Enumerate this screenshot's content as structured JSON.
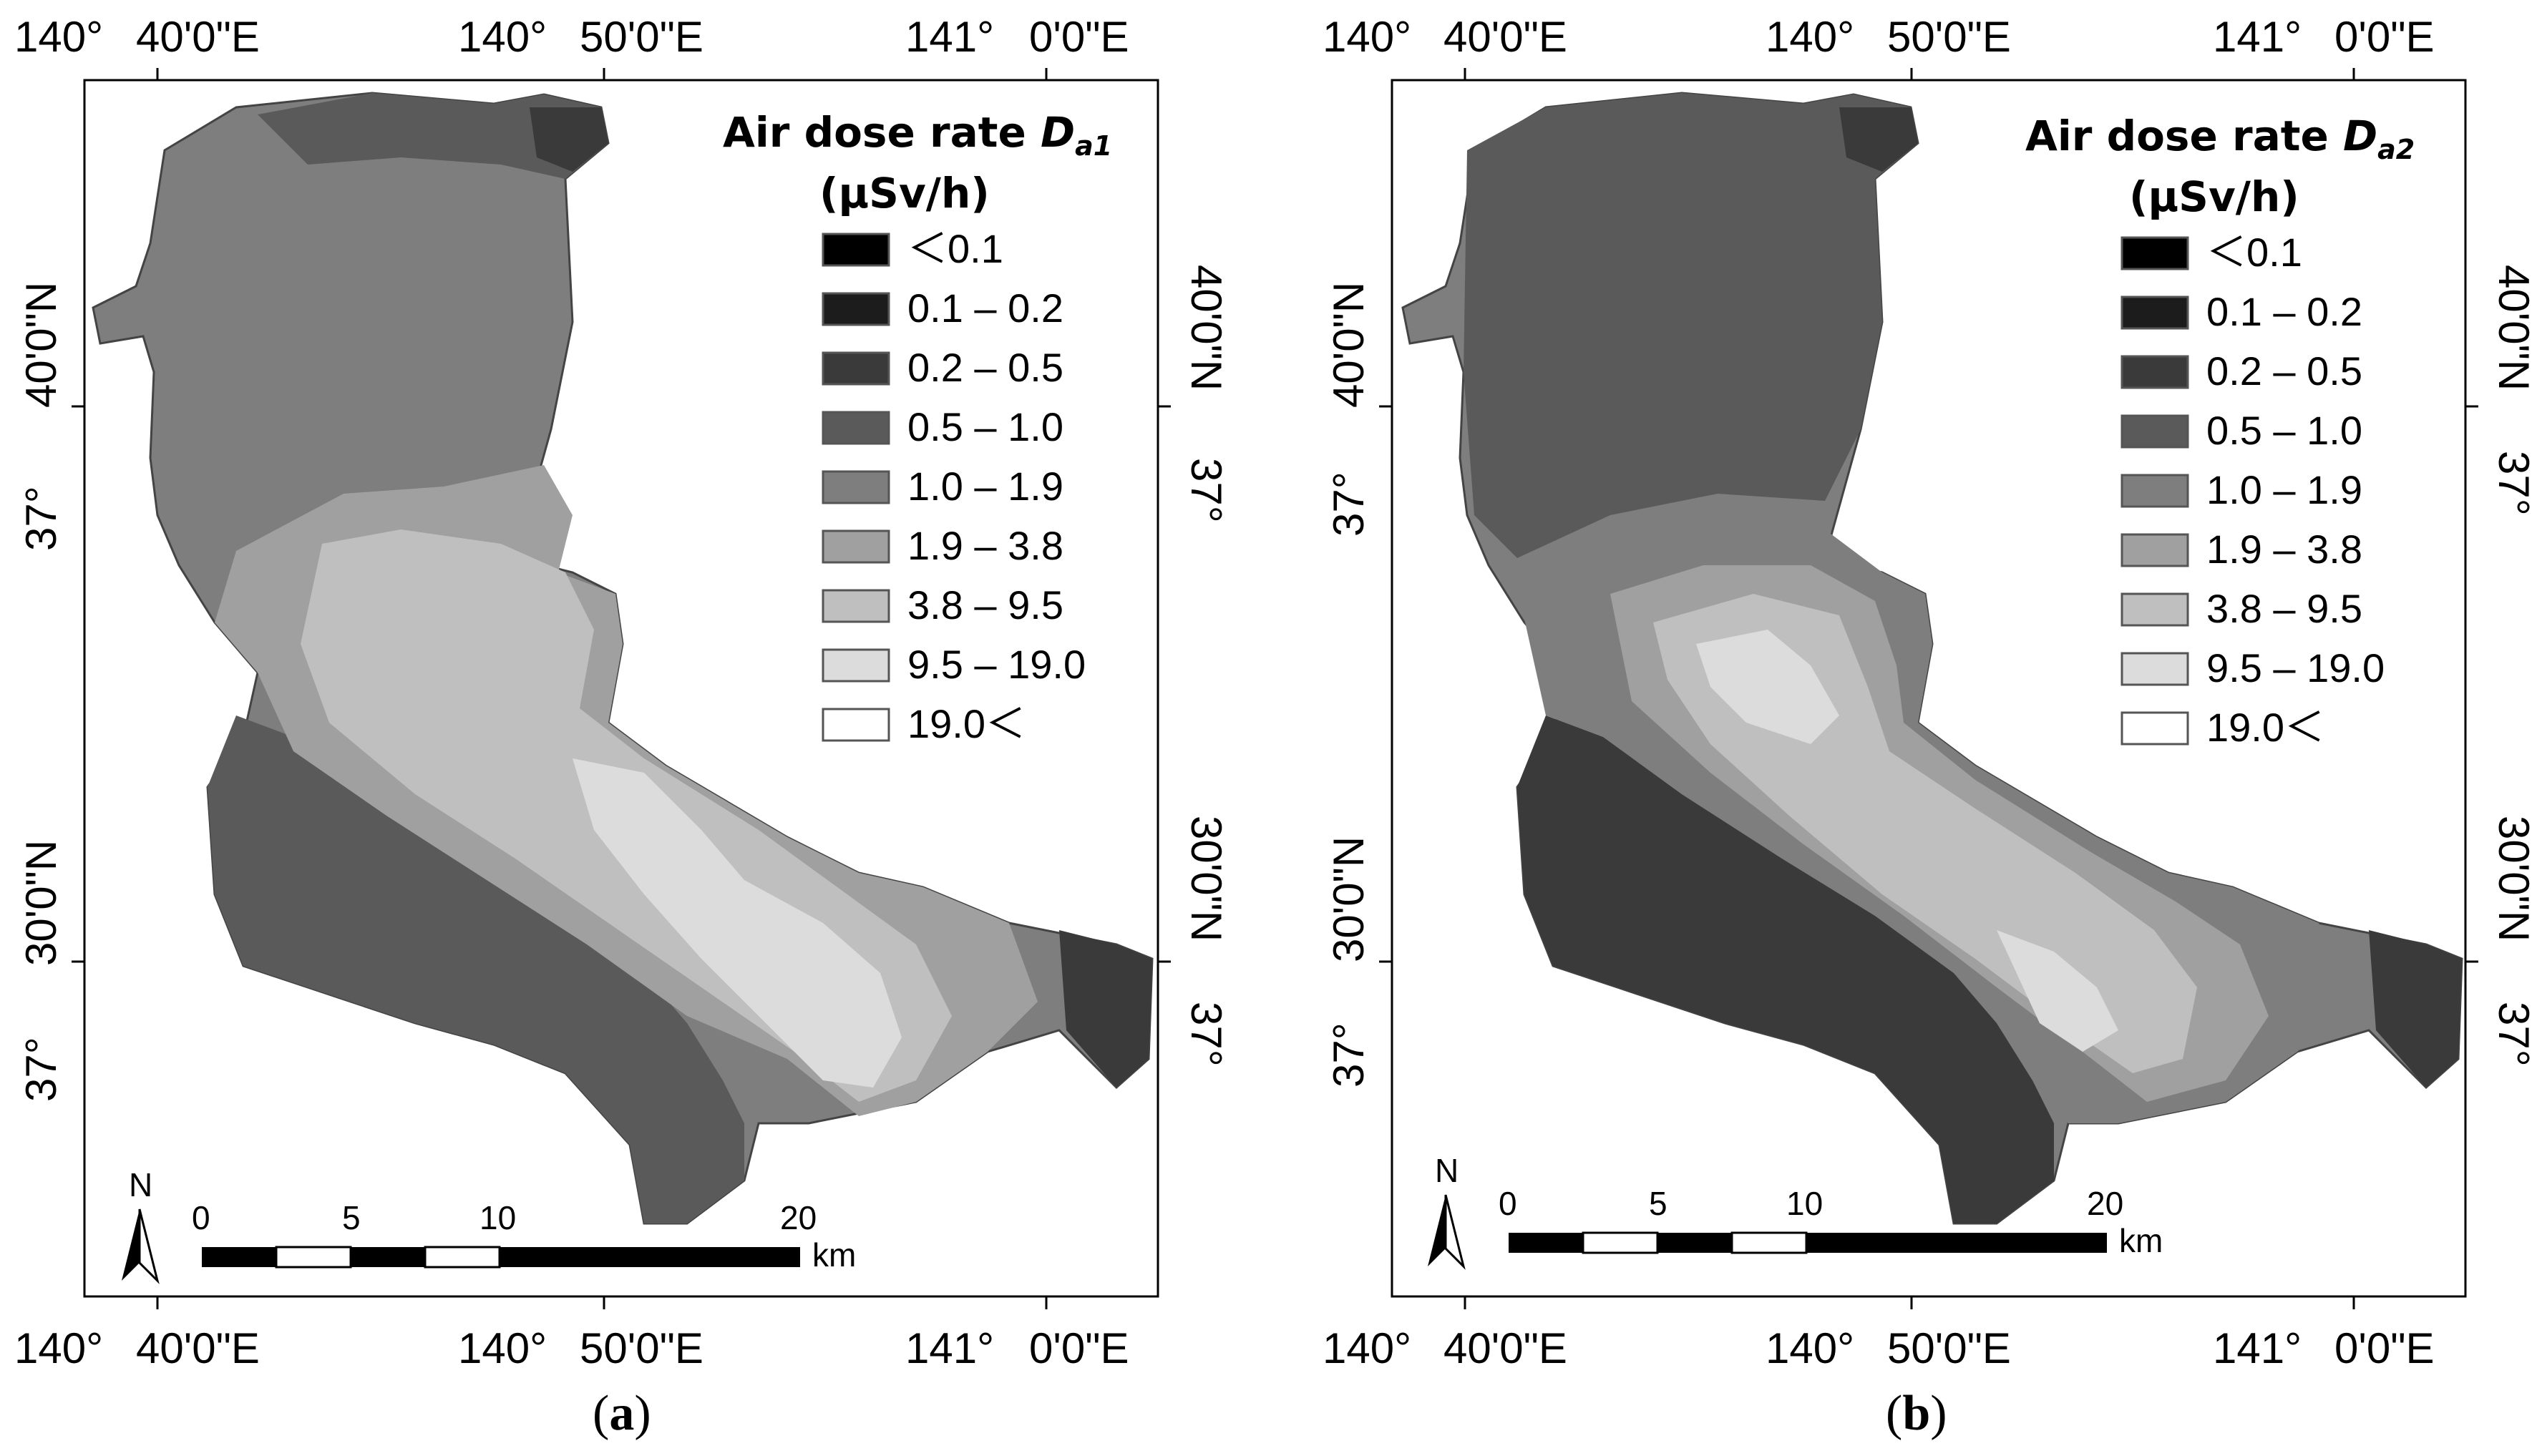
{
  "panels": [
    {
      "id": "a",
      "legend_title": "Air dose rate ",
      "legend_symbol": "D",
      "legend_subscript": "a1",
      "legend_unit": "(μSv/h)",
      "caption_open": "(",
      "caption_letter": "a",
      "caption_close": ")"
    },
    {
      "id": "b",
      "legend_title": "Air dose rate ",
      "legend_symbol": "D",
      "legend_subscript": "a2",
      "legend_unit": "(μSv/h)",
      "caption_open": "(",
      "caption_letter": "b",
      "caption_close": ")"
    }
  ],
  "legend_classes": [
    {
      "label": "＜0.1",
      "color": "#000000"
    },
    {
      "label": "0.1 – 0.2",
      "color": "#1c1c1c"
    },
    {
      "label": "0.2 – 0.5",
      "color": "#3a3a3a"
    },
    {
      "label": "0.5 – 1.0",
      "color": "#5a5a5a"
    },
    {
      "label": "1.0 – 1.9",
      "color": "#7e7e7e"
    },
    {
      "label": "1.9 – 3.8",
      "color": "#a0a0a0"
    },
    {
      "label": "3.8 – 9.5",
      "color": "#bfbfbf"
    },
    {
      "label": "9.5 – 19.0",
      "color": "#dcdcdc"
    },
    {
      "label": "19.0＜",
      "color": "#ffffff"
    }
  ],
  "lon_ticks": [
    {
      "deg": "140°",
      "min": "40'0\"E"
    },
    {
      "deg": "140°",
      "min": "50'0\"E"
    },
    {
      "deg": "141°",
      "min": "0'0\"E"
    }
  ],
  "lat_ticks": [
    {
      "deg": "37°",
      "min": "40'0\"N"
    },
    {
      "deg": "37°",
      "min": "30'0\"N"
    }
  ],
  "scale_bar": {
    "labels": [
      "0",
      "5",
      "10",
      "20"
    ],
    "unit": "km",
    "north": "N"
  }
}
